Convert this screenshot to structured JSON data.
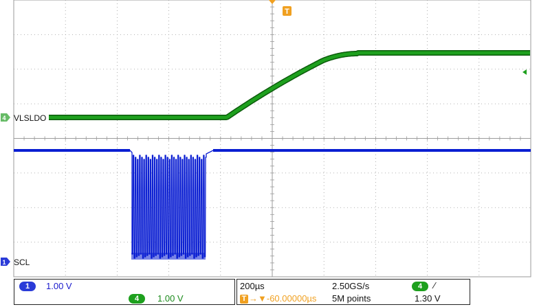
{
  "scope": {
    "colors": {
      "ch1": "#0a1ed2",
      "ch4": "#1ea01e",
      "ch4_outline": "#0b5a0b",
      "grid": "#9a9a9a",
      "trigger": "#f0a020",
      "marker_ch4": "#66bb66",
      "marker_ch1": "#2a3bd8"
    },
    "trigger_marker_label": "T",
    "ch4_label": "VLSLDO",
    "ch1_label": "SCL",
    "ch4_marker_label": "4",
    "ch1_marker_label": "1"
  },
  "panel": {
    "ch1_badge": "1",
    "ch1_scale": "1.00 V",
    "ch4_badge": "4",
    "ch4_scale": "1.00 V",
    "timebase": "200µs",
    "sample_rate": "2.50GS/s",
    "trig_channel_badge": "4",
    "trig_slope": "∕",
    "trig_icon": "T",
    "trig_position": "→▼-60.00000µs",
    "record_length": "5M points",
    "trig_level": "1.30 V"
  }
}
